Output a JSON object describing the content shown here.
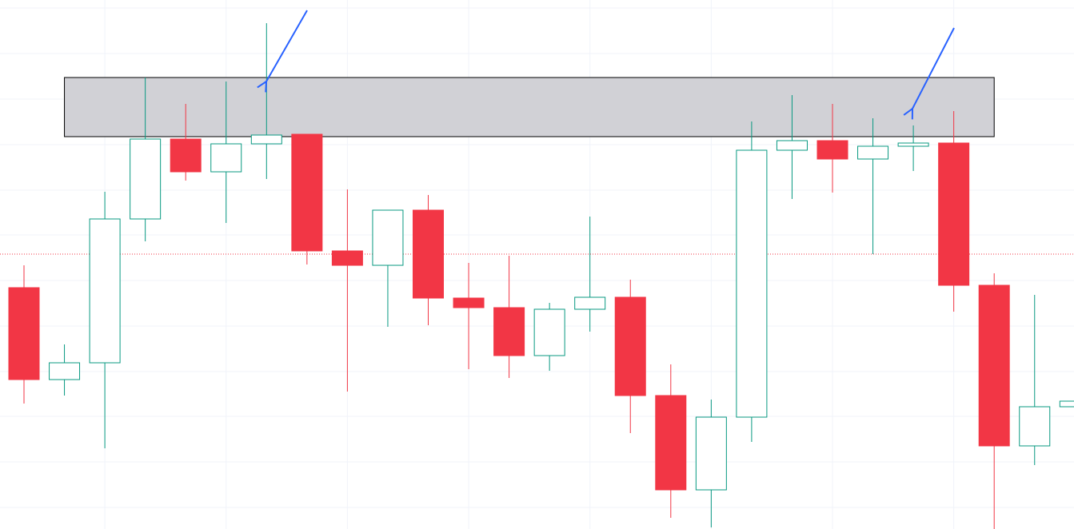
{
  "chart_data": {
    "type": "candlestick",
    "categories": [
      null,
      null,
      null,
      null,
      null,
      null,
      null,
      null,
      null,
      null,
      null,
      null,
      null,
      null,
      null,
      null,
      null,
      null,
      null,
      null,
      null,
      null,
      null,
      null,
      null,
      null,
      null
    ],
    "open": [
      302,
      187,
      208,
      388,
      488,
      447,
      482,
      494,
      348,
      330,
      399,
      289,
      277,
      217,
      275,
      290,
      167,
      49,
      140,
      474,
      486,
      463,
      479,
      483,
      305,
      104,
      153
    ],
    "high": [
      330,
      231,
      422,
      565,
      532,
      560,
      633,
      494,
      425,
      399,
      418,
      333,
      342,
      283,
      391,
      312,
      206,
      162,
      510,
      543,
      532,
      514,
      505,
      523,
      320,
      293,
      160
    ],
    "low": [
      157,
      167,
      101,
      360,
      436,
      383,
      438,
      331,
      172,
      253,
      255,
      200,
      189,
      198,
      247,
      120,
      14,
      2,
      109,
      413,
      421,
      344,
      448,
      272,
      0,
      80,
      153
    ],
    "close": [
      187,
      208,
      388,
      488,
      447,
      482,
      493,
      348,
      330,
      399,
      289,
      277,
      217,
      275,
      290,
      167,
      49,
      140,
      474,
      486,
      463,
      479,
      483,
      305,
      104,
      153,
      160
    ],
    "up_color": "#089981",
    "down_color": "#f23645",
    "ylim": [
      0,
      662
    ],
    "grid_levels": [
      27,
      84,
      141,
      197,
      254,
      311,
      368,
      424,
      481,
      538,
      595,
      652
    ],
    "grid": true,
    "price_line": 344,
    "zone": [
      491,
      565
    ]
  }
}
